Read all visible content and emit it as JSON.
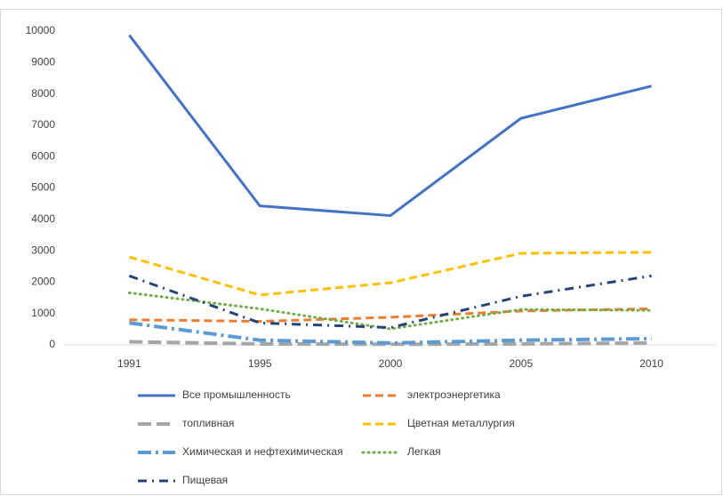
{
  "chart_data": {
    "type": "line",
    "categories": [
      "1991",
      "1995",
      "2000",
      "2005",
      "2010"
    ],
    "series": [
      {
        "name": "Все промышленность",
        "color": "#4472c4",
        "style": "solid",
        "values": [
          9870,
          4430,
          4120,
          7220,
          8250
        ]
      },
      {
        "name": "электроэнергетика",
        "color": "#ed7d31",
        "style": "dash",
        "values": [
          800,
          750,
          880,
          1080,
          1150
        ]
      },
      {
        "name": "топливная",
        "color": "#a5a5a5",
        "style": "long-dash",
        "values": [
          100,
          30,
          20,
          30,
          60
        ]
      },
      {
        "name": "Цветная металлургия",
        "color": "#ffc000",
        "style": "dash",
        "values": [
          2800,
          1590,
          1980,
          2920,
          2950
        ]
      },
      {
        "name": "Химическая и нефтехимическая",
        "color": "#5b9bd5",
        "style": "long-dash-dot",
        "values": [
          700,
          150,
          60,
          150,
          200
        ]
      },
      {
        "name": "Легкая",
        "color": "#70ad47",
        "style": "dot",
        "values": [
          1660,
          1150,
          510,
          1130,
          1100
        ]
      },
      {
        "name": "Пищевая",
        "color": "#264478",
        "style": "dash-dot",
        "values": [
          2200,
          700,
          550,
          1550,
          2200
        ]
      }
    ],
    "ylim": [
      0,
      10000
    ],
    "yticks": [
      0,
      1000,
      2000,
      3000,
      4000,
      5000,
      6000,
      7000,
      8000,
      9000,
      10000
    ],
    "grid": false,
    "legend": "bottom"
  }
}
